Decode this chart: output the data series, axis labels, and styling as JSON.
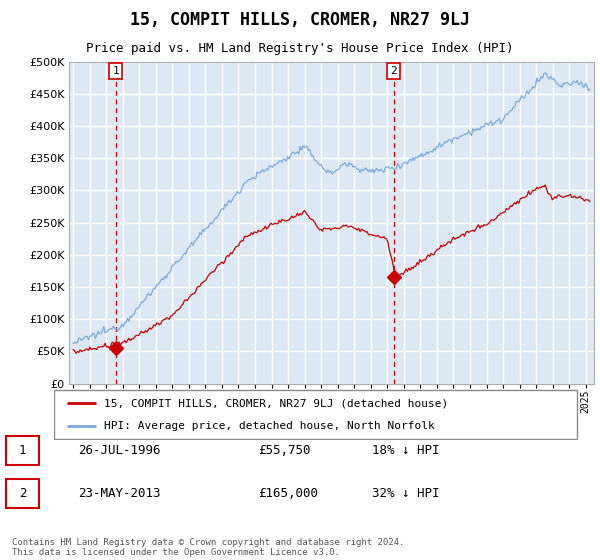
{
  "title": "15, COMPIT HILLS, CROMER, NR27 9LJ",
  "subtitle": "Price paid vs. HM Land Registry's House Price Index (HPI)",
  "legend_line1": "15, COMPIT HILLS, CROMER, NR27 9LJ (detached house)",
  "legend_line2": "HPI: Average price, detached house, North Norfolk",
  "annotation1_date": "26-JUL-1996",
  "annotation1_price": "£55,750",
  "annotation1_hpi": "18% ↓ HPI",
  "annotation2_date": "23-MAY-2013",
  "annotation2_price": "£165,000",
  "annotation2_hpi": "32% ↓ HPI",
  "footer": "Contains HM Land Registry data © Crown copyright and database right 2024.\nThis data is licensed under the Open Government Licence v3.0.",
  "price_line_color": "#cc0000",
  "hpi_line_color": "#7aaadd",
  "chart_bg_color": "#dce9f5",
  "grid_color": "#ffffff",
  "ylim": [
    0,
    500000
  ],
  "yticks": [
    0,
    50000,
    100000,
    150000,
    200000,
    250000,
    300000,
    350000,
    400000,
    450000,
    500000
  ],
  "sale1_x": 1996.57,
  "sale1_y": 55750,
  "sale2_x": 2013.38,
  "sale2_y": 165000,
  "xmin": 1993.75,
  "xmax": 2025.5
}
